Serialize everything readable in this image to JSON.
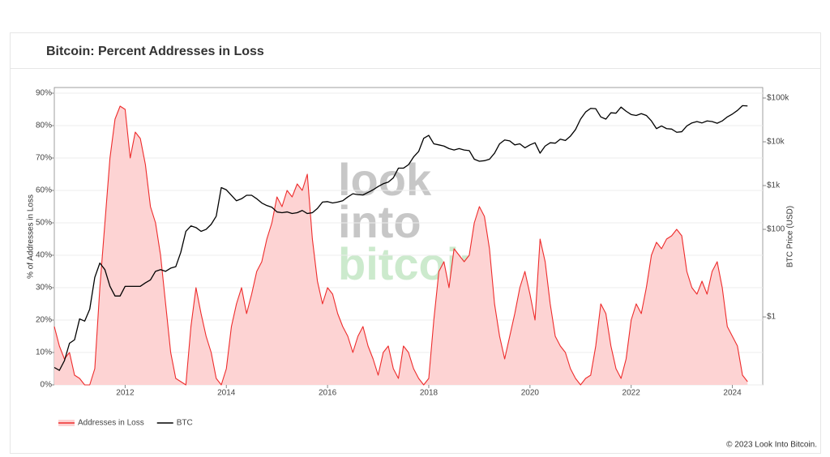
{
  "header": {
    "title": "Bitcoin: Percent Addresses in Loss"
  },
  "watermark": [
    "look",
    "into",
    "bitcoin"
  ],
  "footer": "© 2023 Look Into Bitcoin.",
  "chart_data": {
    "type": "line",
    "ylabel": "% of Addresses in Loss",
    "y2label": "BTC Price (USD)",
    "x": [
      2010.6,
      2010.7,
      2010.8,
      2010.9,
      2011.0,
      2011.1,
      2011.2,
      2011.3,
      2011.4,
      2011.5,
      2011.6,
      2011.7,
      2011.8,
      2011.9,
      2012.0,
      2012.1,
      2012.2,
      2012.3,
      2012.4,
      2012.5,
      2012.6,
      2012.7,
      2012.8,
      2012.9,
      2013.0,
      2013.1,
      2013.2,
      2013.3,
      2013.4,
      2013.5,
      2013.6,
      2013.7,
      2013.8,
      2013.9,
      2014.0,
      2014.1,
      2014.2,
      2014.3,
      2014.4,
      2014.5,
      2014.6,
      2014.7,
      2014.8,
      2014.9,
      2015.0,
      2015.1,
      2015.2,
      2015.3,
      2015.4,
      2015.5,
      2015.6,
      2015.7,
      2015.8,
      2015.9,
      2016.0,
      2016.1,
      2016.2,
      2016.3,
      2016.4,
      2016.5,
      2016.6,
      2016.7,
      2016.8,
      2016.9,
      2017.0,
      2017.1,
      2017.2,
      2017.3,
      2017.4,
      2017.5,
      2017.6,
      2017.7,
      2017.8,
      2017.9,
      2018.0,
      2018.1,
      2018.2,
      2018.3,
      2018.4,
      2018.5,
      2018.6,
      2018.7,
      2018.8,
      2018.9,
      2019.0,
      2019.1,
      2019.2,
      2019.3,
      2019.4,
      2019.5,
      2019.6,
      2019.7,
      2019.8,
      2019.9,
      2020.0,
      2020.1,
      2020.2,
      2020.3,
      2020.4,
      2020.5,
      2020.6,
      2020.7,
      2020.8,
      2020.9,
      2021.0,
      2021.1,
      2021.2,
      2021.3,
      2021.4,
      2021.5,
      2021.6,
      2021.7,
      2021.8,
      2021.9,
      2022.0,
      2022.1,
      2022.2,
      2022.3,
      2022.4,
      2022.5,
      2022.6,
      2022.7,
      2022.8,
      2022.9,
      2023.0,
      2023.1,
      2023.2,
      2023.3,
      2023.4,
      2023.5,
      2023.6,
      2023.7,
      2023.8,
      2023.9,
      2024.0,
      2024.1,
      2024.2,
      2024.3
    ],
    "series": [
      {
        "name": "Addresses in Loss",
        "color": "#ee2c2c",
        "fill": "#fdd3d3",
        "values": [
          18,
          12,
          8,
          10,
          3,
          2,
          0,
          0,
          5,
          30,
          50,
          70,
          82,
          86,
          85,
          70,
          78,
          76,
          68,
          55,
          50,
          40,
          25,
          10,
          2,
          1,
          0,
          18,
          30,
          22,
          15,
          10,
          2,
          0,
          5,
          18,
          25,
          30,
          22,
          28,
          35,
          38,
          45,
          50,
          58,
          55,
          60,
          58,
          62,
          60,
          65,
          45,
          32,
          25,
          30,
          28,
          22,
          18,
          15,
          10,
          15,
          18,
          12,
          8,
          3,
          10,
          12,
          5,
          2,
          12,
          10,
          5,
          2,
          0,
          2,
          20,
          35,
          38,
          30,
          42,
          40,
          38,
          40,
          50,
          55,
          52,
          42,
          25,
          15,
          8,
          15,
          22,
          30,
          35,
          28,
          20,
          45,
          38,
          25,
          15,
          12,
          10,
          5,
          2,
          0,
          2,
          3,
          12,
          25,
          22,
          12,
          5,
          2,
          8,
          20,
          25,
          22,
          30,
          40,
          44,
          42,
          45,
          46,
          48,
          46,
          35,
          30,
          28,
          32,
          28,
          35,
          38,
          30,
          18,
          15,
          12,
          3,
          1
        ]
      },
      {
        "name": "BTC",
        "color": "#000000",
        "axis": "y2",
        "values": [
          0.07,
          0.06,
          0.1,
          0.25,
          0.3,
          0.9,
          0.8,
          1.5,
          8,
          17,
          12,
          5,
          3,
          3,
          5,
          5,
          5,
          5,
          6,
          7,
          11,
          12,
          11,
          13,
          14,
          30,
          90,
          120,
          110,
          90,
          100,
          130,
          200,
          900,
          800,
          600,
          450,
          500,
          600,
          600,
          500,
          400,
          350,
          320,
          250,
          240,
          250,
          230,
          240,
          270,
          230,
          240,
          300,
          420,
          430,
          400,
          420,
          450,
          550,
          650,
          620,
          610,
          700,
          800,
          950,
          1100,
          1200,
          1500,
          2500,
          2500,
          3000,
          4500,
          6000,
          12000,
          14000,
          9000,
          8500,
          8000,
          7000,
          6500,
          7000,
          6500,
          6300,
          4000,
          3600,
          3700,
          4000,
          5500,
          9000,
          11000,
          10500,
          8500,
          9000,
          7300,
          8500,
          9500,
          5500,
          8000,
          9500,
          9300,
          11500,
          10700,
          13500,
          19000,
          33000,
          48000,
          58000,
          57000,
          37000,
          33000,
          46000,
          45000,
          62000,
          50000,
          42000,
          40000,
          44000,
          40000,
          30000,
          20000,
          23000,
          20000,
          19500,
          16500,
          17000,
          23000,
          27000,
          29000,
          27000,
          30000,
          29000,
          26500,
          30000,
          37000,
          43000,
          52000,
          67000,
          66000
        ]
      }
    ],
    "xlim": [
      2010.6,
      2024.6
    ],
    "xticks": [
      2012,
      2014,
      2016,
      2018,
      2020,
      2022,
      2024
    ],
    "ylim": [
      0,
      90
    ],
    "yticks": [
      {
        "value": 0,
        "label": "0%"
      },
      {
        "value": 10,
        "label": "10%"
      },
      {
        "value": 20,
        "label": "20%"
      },
      {
        "value": 30,
        "label": "30%"
      },
      {
        "value": 40,
        "label": "40%"
      },
      {
        "value": 50,
        "label": "50%"
      },
      {
        "value": 60,
        "label": "60%"
      },
      {
        "value": 70,
        "label": "70%"
      },
      {
        "value": 80,
        "label": "80%"
      },
      {
        "value": 90,
        "label": "90%"
      }
    ],
    "y2lim": [
      0.028,
      129000
    ],
    "y2log": true,
    "y2ticks": [
      {
        "value": 1,
        "label": "$1"
      },
      {
        "value": 100,
        "label": "$100"
      },
      {
        "value": 1000,
        "label": "$1k"
      },
      {
        "value": 10000,
        "label": "$10k"
      },
      {
        "value": 100000,
        "label": "$100k"
      }
    ],
    "grid": true,
    "legend": "bottom-left"
  }
}
